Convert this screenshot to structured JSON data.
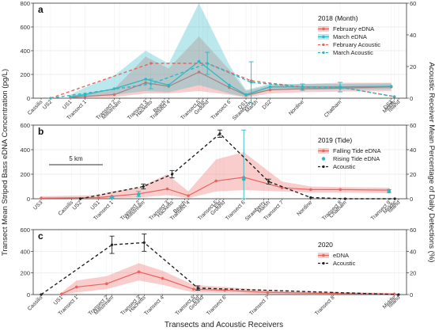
{
  "figure": {
    "ylabel_left": "Transect Mean Striped Bass eDNA Concentration (pg/L)",
    "ylabel_right": "Acoustic Receiver Mean Percentage of Daily Detections (%)",
    "xlabel": "Transects and Acoustic Receivers"
  },
  "colors": {
    "edna_red": "#e8645f",
    "edna_red_band": "#f6b9b5",
    "march_teal": "#2bb9c4",
    "march_band": "#8fdfe4",
    "acoustic": "#222222"
  },
  "chart_data": [
    {
      "type": "line",
      "panel": "a",
      "legend_title": "2018 (Month)",
      "legend_position": "top-right",
      "ylim_left": [
        0,
        800
      ],
      "yticks_left": [
        0,
        200,
        400,
        600,
        800
      ],
      "ylim_right": [
        0,
        60
      ],
      "yticks_right": [
        0,
        20,
        40,
        60
      ],
      "grid": true,
      "locations": [
        {
          "label": "Cassilis",
          "x": 0.0
        },
        {
          "label": "US2",
          "x": 0.45
        },
        {
          "label": "US1",
          "x": 1.4
        },
        {
          "label": "Transect 1",
          "x": 2.1
        },
        {
          "label": "Transect 2",
          "x": 3.5
        },
        {
          "label": "Millstream",
          "x": 3.75
        },
        {
          "label": "Transect 3",
          "x": 5.0
        },
        {
          "label": "Hacketts",
          "x": 5.25
        },
        {
          "label": "Beach",
          "x": 5.9
        },
        {
          "label": "Transect 4",
          "x": 6.1
        },
        {
          "label": "Transect 5",
          "x": 7.55
        },
        {
          "label": "Eel",
          "x": 7.75
        },
        {
          "label": "Ground",
          "x": 7.95
        },
        {
          "label": "Transect 6",
          "x": 9.0
        },
        {
          "label": "DS1",
          "x": 9.8
        },
        {
          "label": "Strawberry",
          "x": 10.05
        },
        {
          "label": "Marsh",
          "x": 10.3
        },
        {
          "label": "DS2",
          "x": 10.95
        },
        {
          "label": "Nordine",
          "x": 12.5
        },
        {
          "label": "Chatham",
          "x": 14.3
        },
        {
          "label": "DS3",
          "x": 16.75
        },
        {
          "label": "Middle",
          "x": 16.9
        },
        {
          "label": "Island",
          "x": 17.1
        }
      ],
      "series": [
        {
          "name": "February eDNA",
          "kind": "edna",
          "color": "#e8645f",
          "x": [
            1.4,
            2.1,
            3.5,
            5.0,
            6.1,
            7.55,
            9.0,
            9.8,
            10.95,
            12.5,
            14.3,
            16.75
          ],
          "y": [
            5,
            15,
            30,
            130,
            100,
            220,
            90,
            25,
            70,
            80,
            85,
            95
          ],
          "band_low": [
            0,
            5,
            10,
            40,
            40,
            60,
            30,
            5,
            40,
            50,
            55,
            60
          ],
          "band_high": [
            20,
            40,
            80,
            350,
            250,
            520,
            240,
            60,
            110,
            120,
            130,
            130
          ]
        },
        {
          "name": "March eDNA",
          "kind": "edna",
          "color": "#2bb9c4",
          "x": [
            1.4,
            2.1,
            3.5,
            5.0,
            6.1,
            7.55,
            9.0,
            9.8,
            10.95,
            12.5,
            14.3,
            16.75
          ],
          "y": [
            10,
            30,
            80,
            160,
            110,
            310,
            110,
            30,
            95,
            95,
            95,
            100
          ],
          "band_low": [
            0,
            10,
            30,
            60,
            50,
            110,
            40,
            10,
            70,
            70,
            70,
            75
          ],
          "band_high": [
            30,
            90,
            190,
            400,
            290,
            800,
            280,
            70,
            120,
            120,
            120,
            125
          ]
        },
        {
          "name": "February Acoustic",
          "kind": "acoustic",
          "color": "#e8645f",
          "x": [
            0.45,
            5.25,
            7.95,
            10.05,
            12.5,
            14.3,
            16.9
          ],
          "y": [
            0,
            22,
            22,
            11,
            7,
            7,
            1
          ],
          "err": [
            0,
            0,
            0,
            0,
            0,
            0,
            0
          ]
        },
        {
          "name": "March Acoustic",
          "kind": "acoustic",
          "color": "#2bb9c4",
          "x": [
            0.45,
            5.25,
            7.95,
            10.05,
            12.5,
            14.3,
            16.9
          ],
          "y": [
            0,
            9,
            22,
            10,
            7,
            7,
            1
          ],
          "err": [
            0,
            3,
            7,
            13,
            2,
            3,
            0
          ]
        }
      ]
    },
    {
      "type": "line",
      "panel": "b",
      "legend_title": "2019 (Tide)",
      "legend_position": "top-right",
      "ylim_left": [
        0,
        600
      ],
      "yticks_left": [
        0,
        200,
        400,
        600
      ],
      "ylim_right": [
        0,
        60
      ],
      "yticks_right": [
        0,
        20,
        40,
        60
      ],
      "grid": true,
      "scale_bar_label": "5 km",
      "locations": [
        {
          "label": "US3",
          "x": 0.0
        },
        {
          "label": "Cassilis",
          "x": 1.6
        },
        {
          "label": "US2",
          "x": 2.05
        },
        {
          "label": "US1",
          "x": 3.0
        },
        {
          "label": "Transect 1",
          "x": 3.7
        },
        {
          "label": "Transect 2",
          "x": 5.1
        },
        {
          "label": "Millstream",
          "x": 5.35
        },
        {
          "label": "Transect 3",
          "x": 6.6
        },
        {
          "label": "Hacketts",
          "x": 6.85
        },
        {
          "label": "Beach",
          "x": 7.5
        },
        {
          "label": "Transect 4",
          "x": 7.7
        },
        {
          "label": "Transect 5",
          "x": 9.15
        },
        {
          "label": "Eel",
          "x": 9.35
        },
        {
          "label": "Ground",
          "x": 9.55
        },
        {
          "label": "Transect 6",
          "x": 10.6
        },
        {
          "label": "Strawberry",
          "x": 11.65
        },
        {
          "label": "Marsh",
          "x": 11.9
        },
        {
          "label": "Transect 7",
          "x": 12.6
        },
        {
          "label": "Nordine",
          "x": 14.1
        },
        {
          "label": "Transect 8",
          "x": 15.65
        },
        {
          "label": "Chatham",
          "x": 15.9
        },
        {
          "label": "Transect 9",
          "x": 18.2
        },
        {
          "label": "Middle",
          "x": 18.5
        },
        {
          "label": "Island",
          "x": 18.7
        }
      ],
      "series": [
        {
          "name": "Falling Tide eDNA",
          "kind": "edna",
          "color": "#e8645f",
          "x": [
            0.0,
            3.0,
            3.7,
            5.1,
            6.6,
            7.7,
            9.15,
            10.6,
            12.6,
            14.1,
            15.65,
            18.2
          ],
          "y": [
            5,
            10,
            20,
            40,
            80,
            25,
            145,
            175,
            90,
            75,
            75,
            70
          ],
          "band_low": [
            0,
            0,
            5,
            10,
            30,
            5,
            60,
            70,
            60,
            50,
            50,
            45
          ],
          "band_high": [
            20,
            30,
            60,
            90,
            200,
            60,
            320,
            380,
            140,
            100,
            95,
            90
          ]
        },
        {
          "name": "Rising Tide eDNA",
          "kind": "points",
          "color": "#2bb9c4",
          "x": [
            3.7,
            5.1,
            10.6,
            18.2
          ],
          "y": [
            10,
            35,
            160,
            60
          ],
          "err_low": [
            5,
            15,
            0,
            50
          ],
          "err_high": [
            15,
            60,
            560,
            75
          ]
        },
        {
          "name": "Acoustic",
          "kind": "acoustic",
          "color": "#222222",
          "x": [
            2.05,
            5.35,
            6.85,
            9.35,
            11.9,
            14.1,
            15.9,
            18.5
          ],
          "y": [
            0,
            10,
            20,
            53,
            14,
            1,
            0,
            0
          ],
          "err": [
            0,
            2,
            3,
            3,
            2,
            0,
            0,
            0
          ]
        }
      ]
    },
    {
      "type": "line",
      "panel": "c",
      "legend_title": "2020",
      "legend_position": "top-right",
      "ylim_left": [
        0,
        600
      ],
      "yticks_left": [
        0,
        200,
        400,
        600
      ],
      "ylim_right": [
        0,
        60
      ],
      "yticks_right": [
        0,
        20,
        40,
        60
      ],
      "grid": true,
      "locations": [
        {
          "label": "Cassilis",
          "x": 0.0
        },
        {
          "label": "US1",
          "x": 0.95
        },
        {
          "label": "Transect 1",
          "x": 1.65
        },
        {
          "label": "Transect 2",
          "x": 3.05
        },
        {
          "label": "Millstream",
          "x": 3.3
        },
        {
          "label": "Transect 3",
          "x": 4.55
        },
        {
          "label": "Hacketts",
          "x": 4.8
        },
        {
          "label": "Transect 4",
          "x": 5.65
        },
        {
          "label": "Transect 5",
          "x": 7.1
        },
        {
          "label": "Eel",
          "x": 7.3
        },
        {
          "label": "Ground",
          "x": 7.5
        },
        {
          "label": "Transect 6",
          "x": 8.55
        },
        {
          "label": "Transect 7",
          "x": 10.55
        },
        {
          "label": "Transect 8",
          "x": 13.6
        },
        {
          "label": "Middle",
          "x": 16.45
        },
        {
          "label": "Island",
          "x": 16.65
        }
      ],
      "series": [
        {
          "name": "eDNA",
          "kind": "edna",
          "color": "#e8645f",
          "x": [
            0.95,
            1.65,
            3.05,
            4.55,
            5.65,
            7.1,
            8.55,
            10.55,
            13.6,
            16.45
          ],
          "y": [
            5,
            70,
            100,
            210,
            150,
            50,
            40,
            20,
            10,
            5
          ],
          "band_low": [
            0,
            20,
            50,
            130,
            90,
            20,
            15,
            5,
            0,
            0
          ],
          "band_high": [
            20,
            130,
            170,
            290,
            220,
            90,
            70,
            40,
            25,
            15
          ]
        },
        {
          "name": "Acoustic",
          "kind": "acoustic",
          "color": "#222222",
          "x": [
            0.0,
            3.3,
            4.8,
            7.3,
            16.65
          ],
          "y": [
            0,
            46,
            48,
            6,
            0
          ],
          "err": [
            0,
            8,
            8,
            2,
            0
          ]
        }
      ]
    }
  ]
}
